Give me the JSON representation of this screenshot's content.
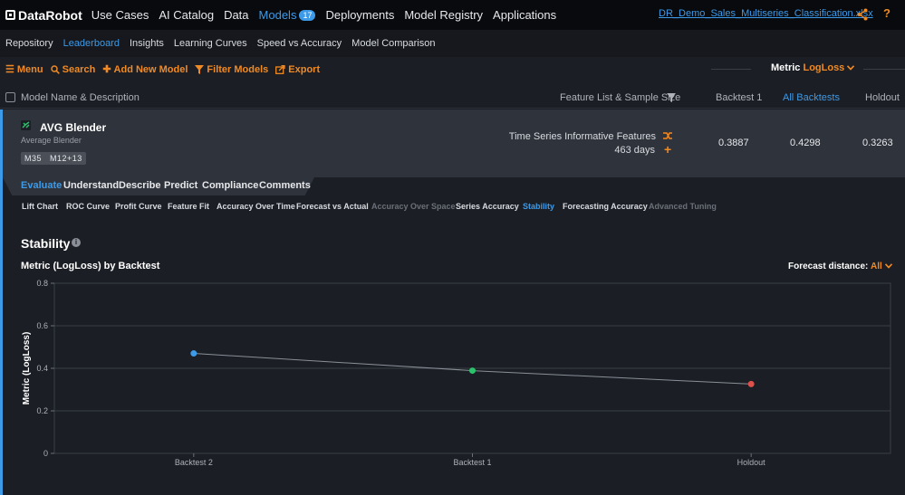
{
  "topnav": {
    "logo": "DataRobot",
    "items": [
      {
        "label": "Use Cases"
      },
      {
        "label": "AI Catalog"
      },
      {
        "label": "Data"
      },
      {
        "label": "Models",
        "badge": "17"
      },
      {
        "label": "Deployments"
      },
      {
        "label": "Model Registry"
      },
      {
        "label": "Applications"
      }
    ],
    "project": "DR_Demo_Sales_Multiseries_Classification.xlsx",
    "help": "?"
  },
  "subnav": [
    "Repository",
    "Leaderboard",
    "Insights",
    "Learning Curves",
    "Speed vs Accuracy",
    "Model Comparison"
  ],
  "toolbar": {
    "menu": "Menu",
    "search": "Search",
    "add": "Add New Model",
    "filter": "Filter Models",
    "export": "Export",
    "metric_label": "Metric",
    "metric_value": "LogLoss"
  },
  "header": {
    "model": "Model Name & Description",
    "feature": "Feature List & Sample Size",
    "backtest1": "Backtest 1",
    "all": "All Backtests",
    "holdout": "Holdout"
  },
  "model": {
    "name": "AVG Blender",
    "desc": "Average Blender",
    "tags": [
      "M35",
      "M12+13"
    ],
    "feature_list": "Time Series Informative Features",
    "sample_size": "463 days",
    "backtest1": "0.3887",
    "all": "0.4298",
    "holdout": "0.3263"
  },
  "tabs": [
    "Evaluate",
    "Understand",
    "Describe",
    "Predict",
    "Compliance",
    "Comments"
  ],
  "subtabs": [
    "Lift Chart",
    "ROC Curve",
    "Profit Curve",
    "Feature Fit",
    "Accuracy Over Time",
    "Forecast vs Actual",
    "Accuracy Over Space",
    "Series Accuracy",
    "Stability",
    "Forecasting Accuracy",
    "Advanced Tuning"
  ],
  "stability": {
    "title": "Stability",
    "chart_title": "Metric (LogLoss) by Backtest",
    "forecast_label": "Forecast distance:",
    "forecast_value": "All"
  },
  "chart_data": {
    "type": "line",
    "categories": [
      "Backtest 2",
      "Backtest 1",
      "Holdout"
    ],
    "values": [
      0.47,
      0.389,
      0.326
    ],
    "point_colors": [
      "#3d9ae8",
      "#2bc26b",
      "#e0504a"
    ],
    "ylabel": "Metric (LogLoss)",
    "ylim": [
      0,
      0.8
    ],
    "yticks": [
      "0",
      "0.2",
      "0.4",
      "0.6",
      "0.8"
    ],
    "grid": true
  },
  "colors": {
    "accent": "#3d9ae8",
    "orange": "#f08a24"
  }
}
